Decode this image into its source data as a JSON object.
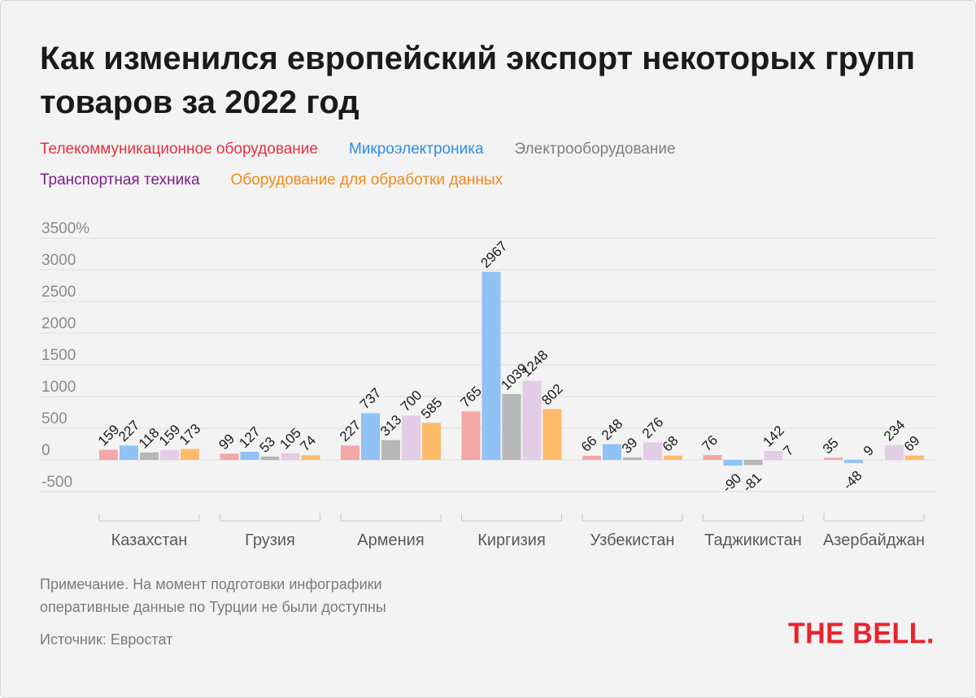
{
  "chart_data": {
    "type": "bar",
    "title": "Как изменился европейский экспорт некоторых групп товаров за 2022 год",
    "xlabel": "",
    "ylabel": "",
    "ylim": [
      -500,
      3500
    ],
    "yticks": [
      {
        "value": 3500,
        "label": "3500%"
      },
      {
        "value": 3000,
        "label": "3000"
      },
      {
        "value": 2500,
        "label": "2500"
      },
      {
        "value": 2000,
        "label": "2000"
      },
      {
        "value": 1500,
        "label": "1500"
      },
      {
        "value": 1000,
        "label": "1000"
      },
      {
        "value": 500,
        "label": "500"
      },
      {
        "value": 0,
        "label": "0"
      },
      {
        "value": -500,
        "label": "-500"
      }
    ],
    "grid": true,
    "legend_position": "top",
    "categories": [
      "Казахстан",
      "Грузия",
      "Армения",
      "Киргизия",
      "Узбекистан",
      "Таджикистан",
      "Азербайджан"
    ],
    "series": [
      {
        "name": "Телекоммуникационное оборудование",
        "color": "#f4a7a7",
        "label_color": "#e8323c",
        "values": [
          159,
          99,
          227,
          765,
          66,
          76,
          35
        ],
        "labels": [
          "159",
          "99",
          "227",
          "765",
          "66",
          "76",
          "35"
        ]
      },
      {
        "name": "Микроэлектроника",
        "color": "#90c2f5",
        "label_color": "#2d8fe5",
        "values": [
          227,
          127,
          737,
          2967,
          248,
          -90,
          -48
        ],
        "labels": [
          "227",
          "127",
          "737",
          "2967",
          "248",
          "-90",
          "-48"
        ]
      },
      {
        "name": "Электрооборудование",
        "color": "#b6b6b6",
        "label_color": "#7f7f7f",
        "values": [
          118,
          53,
          313,
          1039,
          39,
          -81,
          null
        ],
        "labels": [
          "118",
          "53",
          "313",
          "1039",
          "39",
          "-81",
          "9"
        ]
      },
      {
        "name": "Транспортная техника",
        "color": "#e3cce6",
        "label_color": "#7a1f8a",
        "values": [
          159,
          105,
          700,
          1248,
          276,
          142,
          234
        ],
        "labels": [
          "159",
          "105",
          "700",
          "1248",
          "276",
          "142",
          "234"
        ]
      },
      {
        "name": "Оборудование для обработки данных",
        "color": "#fdbb6a",
        "label_color": "#f38a16",
        "values": [
          173,
          74,
          585,
          802,
          68,
          null,
          69
        ],
        "labels": [
          "173",
          "74",
          "585",
          "802",
          "68",
          "7",
          "69"
        ]
      }
    ]
  },
  "note": {
    "line1": "Примечание. На момент подготовки инфографики",
    "line2": "оперативные данные по Турции не были доступны"
  },
  "source": "Источник: Евростат",
  "logo": "THE BELL."
}
